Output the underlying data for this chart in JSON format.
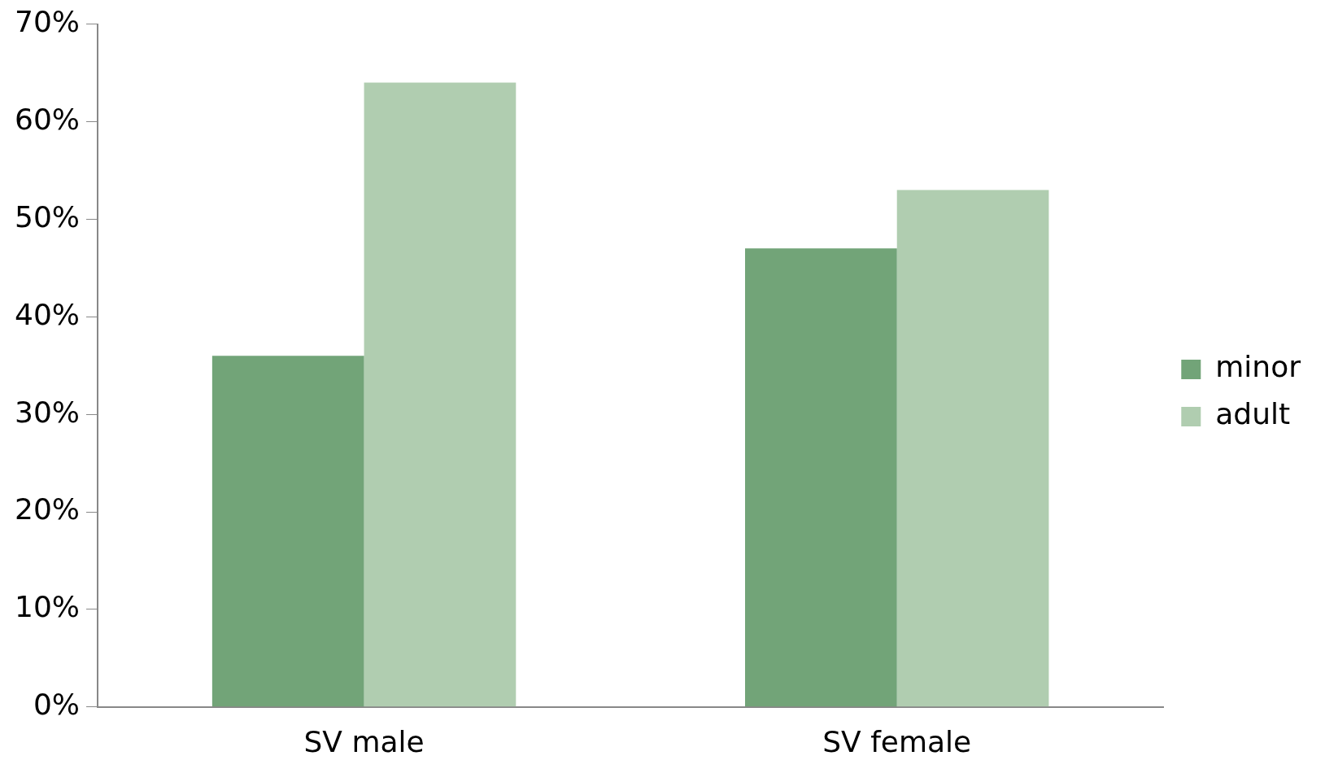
{
  "chart_data": {
    "type": "bar",
    "categories": [
      "SV male",
      "SV female"
    ],
    "series": [
      {
        "name": "minor",
        "color": "#72a478",
        "values": [
          36,
          47
        ]
      },
      {
        "name": "adult",
        "color": "#b0cdb0",
        "values": [
          64,
          53
        ]
      }
    ],
    "ylim": [
      0,
      70
    ],
    "yticks": [
      {
        "value": 0,
        "label": "0%"
      },
      {
        "value": 10,
        "label": "10%"
      },
      {
        "value": 20,
        "label": "20%"
      },
      {
        "value": 30,
        "label": "30%"
      },
      {
        "value": 40,
        "label": "40%"
      },
      {
        "value": 50,
        "label": "50%"
      },
      {
        "value": 60,
        "label": "60%"
      },
      {
        "value": 70,
        "label": "70%"
      }
    ],
    "grid": false,
    "legend": "right"
  }
}
